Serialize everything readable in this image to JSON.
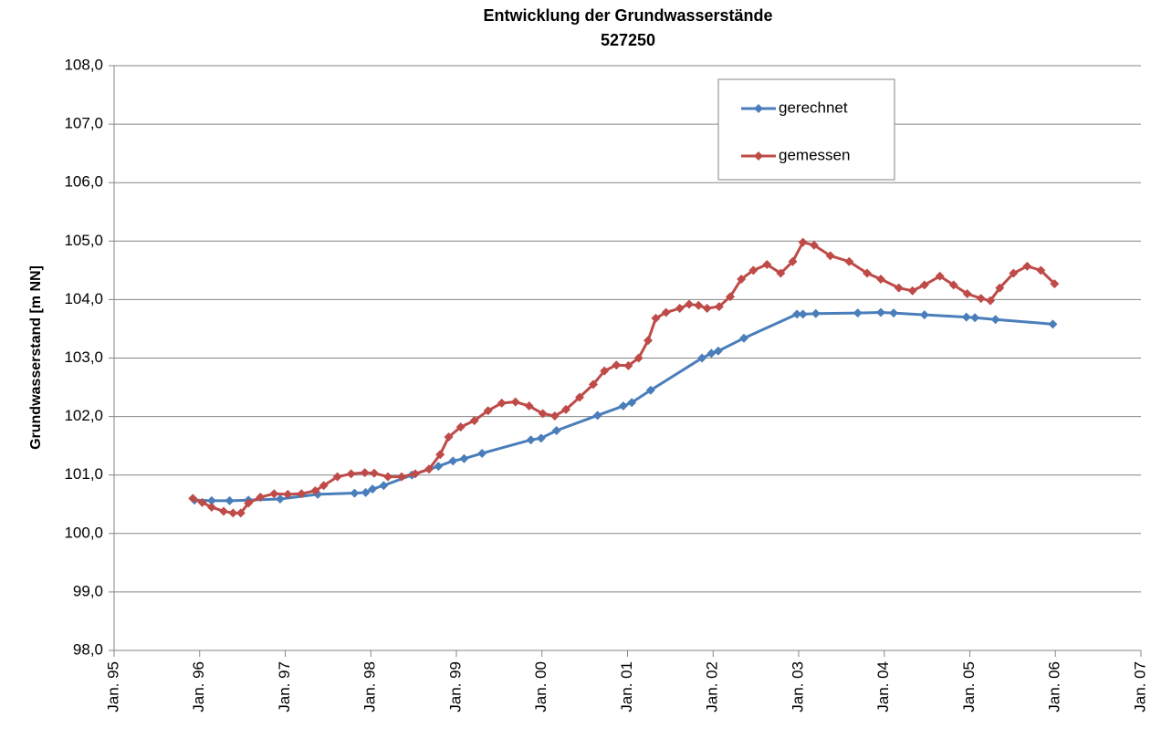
{
  "chart_data": {
    "type": "line",
    "title": "Entwicklung der Grundwasserstände",
    "subtitle": "527250",
    "ylabel": "Grundwasserstand [m NN]",
    "xlim": [
      1995,
      2007
    ],
    "xticks": [
      {
        "value": 1995,
        "label": "Jan. 95"
      },
      {
        "value": 1996,
        "label": "Jan. 96"
      },
      {
        "value": 1997,
        "label": "Jan. 97"
      },
      {
        "value": 1998,
        "label": "Jan. 98"
      },
      {
        "value": 1999,
        "label": "Jan. 99"
      },
      {
        "value": 2000,
        "label": "Jan. 00"
      },
      {
        "value": 2001,
        "label": "Jan. 01"
      },
      {
        "value": 2002,
        "label": "Jan. 02"
      },
      {
        "value": 2003,
        "label": "Jan. 03"
      },
      {
        "value": 2004,
        "label": "Jan. 04"
      },
      {
        "value": 2005,
        "label": "Jan. 05"
      },
      {
        "value": 2006,
        "label": "Jan. 06"
      },
      {
        "value": 2007,
        "label": "Jan. 07"
      }
    ],
    "ylim": [
      98,
      108
    ],
    "yticks": [
      {
        "value": 98,
        "label": "98,0"
      },
      {
        "value": 99,
        "label": "99,0"
      },
      {
        "value": 100,
        "label": "100,0"
      },
      {
        "value": 101,
        "label": "101,0"
      },
      {
        "value": 102,
        "label": "102,0"
      },
      {
        "value": 103,
        "label": "103,0"
      },
      {
        "value": 104,
        "label": "104,0"
      },
      {
        "value": 105,
        "label": "105,0"
      },
      {
        "value": 106,
        "label": "106,0"
      },
      {
        "value": 107,
        "label": "107,0"
      },
      {
        "value": 108,
        "label": "108,0"
      }
    ],
    "grid": true,
    "legend": "upper right",
    "series": [
      {
        "name": "gerechnet",
        "color": "#4a7ebb",
        "x": [
          1995.94,
          1996.14,
          1996.35,
          1996.57,
          1996.94,
          1997.38,
          1997.81,
          1997.94,
          1998.02,
          1998.15,
          1998.48,
          1998.79,
          1998.96,
          1999.09,
          1999.3,
          1999.87,
          1999.99,
          2000.17,
          2000.65,
          2000.95,
          2001.05,
          2001.27,
          2001.87,
          2001.98,
          2002.06,
          2002.36,
          2002.98,
          2003.05,
          2003.2,
          2003.69,
          2003.96,
          2004.11,
          2004.47,
          2004.96,
          2005.06,
          2005.3,
          2005.97
        ],
        "values": [
          100.57,
          100.56,
          100.56,
          100.57,
          100.59,
          100.67,
          100.69,
          100.7,
          100.76,
          100.82,
          101.0,
          101.15,
          101.24,
          101.28,
          101.37,
          101.6,
          101.63,
          101.76,
          102.02,
          102.18,
          102.24,
          102.45,
          103.0,
          103.08,
          103.12,
          103.34,
          103.75,
          103.75,
          103.76,
          103.77,
          103.78,
          103.77,
          103.74,
          103.7,
          103.69,
          103.66,
          103.58
        ]
      },
      {
        "name": "gemessen",
        "color": "#be4b48",
        "x": [
          1995.92,
          1996.03,
          1996.14,
          1996.28,
          1996.39,
          1996.48,
          1996.57,
          1996.71,
          1996.87,
          1997.03,
          1997.19,
          1997.35,
          1997.45,
          1997.61,
          1997.77,
          1997.93,
          1998.04,
          1998.2,
          1998.36,
          1998.52,
          1998.68,
          1998.81,
          1998.91,
          1999.05,
          1999.21,
          1999.37,
          1999.53,
          1999.69,
          1999.85,
          2000.01,
          2000.15,
          2000.28,
          2000.44,
          2000.6,
          2000.73,
          2000.87,
          2001.01,
          2001.13,
          2001.24,
          2001.33,
          2001.45,
          2001.61,
          2001.72,
          2001.83,
          2001.93,
          2002.07,
          2002.2,
          2002.33,
          2002.47,
          2002.63,
          2002.79,
          2002.93,
          2003.05,
          2003.18,
          2003.37,
          2003.59,
          2003.8,
          2003.96,
          2004.17,
          2004.33,
          2004.47,
          2004.65,
          2004.81,
          2004.97,
          2005.13,
          2005.24,
          2005.35,
          2005.51,
          2005.67,
          2005.83,
          2005.99
        ],
        "values": [
          100.6,
          100.53,
          100.45,
          100.38,
          100.35,
          100.35,
          100.52,
          100.62,
          100.68,
          100.67,
          100.68,
          100.73,
          100.82,
          100.97,
          101.02,
          101.04,
          101.03,
          100.97,
          100.97,
          101.02,
          101.1,
          101.35,
          101.65,
          101.82,
          101.93,
          102.1,
          102.23,
          102.25,
          102.18,
          102.05,
          102.01,
          102.12,
          102.33,
          102.55,
          102.78,
          102.88,
          102.87,
          103.0,
          103.3,
          103.68,
          103.78,
          103.85,
          103.92,
          103.9,
          103.85,
          103.88,
          104.05,
          104.35,
          104.5,
          104.6,
          104.45,
          104.65,
          104.98,
          104.93,
          104.75,
          104.65,
          104.45,
          104.35,
          104.2,
          104.15,
          104.25,
          104.4,
          104.25,
          104.1,
          104.02,
          103.98,
          104.2,
          104.45,
          104.57,
          104.5,
          104.27
        ]
      }
    ]
  }
}
